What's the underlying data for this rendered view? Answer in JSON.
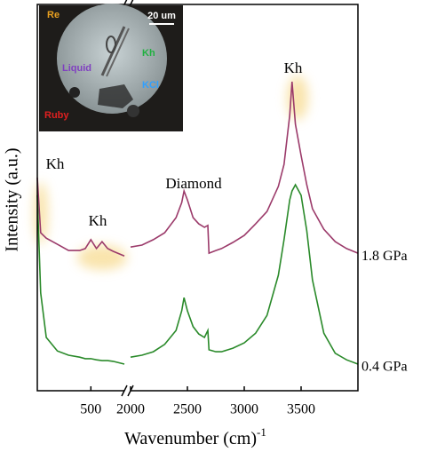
{
  "chart_data": {
    "type": "line",
    "x_label": "Wavenumber (cm)",
    "x_label_sup": "-1",
    "y_label": "Intensity (a.u.)",
    "xlim": [
      [
        20,
        800
      ],
      [
        2000,
        4000
      ]
    ],
    "xticks": [
      [
        500
      ],
      [
        2000,
        2500,
        3000,
        3500
      ]
    ],
    "ylim": [
      0,
      100
    ],
    "x": [
      20,
      50,
      100,
      200,
      300,
      400,
      450,
      500,
      550,
      600,
      650,
      700,
      800,
      2000,
      2100,
      2200,
      2300,
      2400,
      2450,
      2470,
      2500,
      2550,
      2600,
      2650,
      2680,
      2690,
      2750,
      2800,
      2900,
      3000,
      3100,
      3200,
      3300,
      3350,
      3400,
      3420,
      3450,
      3500,
      3550,
      3600,
      3700,
      3800,
      3900,
      4000
    ],
    "series": [
      {
        "name": "1.8 GPa",
        "color": "#9b3a6a",
        "values": [
          55.2,
          40.9,
          39.5,
          37.9,
          36.3,
          36.3,
          36.8,
          39.1,
          36.8,
          38.6,
          36.8,
          36.1,
          34.9,
          37.2,
          37.7,
          39.1,
          40.9,
          44.8,
          48.7,
          51.7,
          49.4,
          44.8,
          43.2,
          42.3,
          42.8,
          35.6,
          36.3,
          36.8,
          38.4,
          40.2,
          43.2,
          46.4,
          52.9,
          58.6,
          71.3,
          80.0,
          69.0,
          60.9,
          53.3,
          47.1,
          41.8,
          38.6,
          36.8,
          35.6
        ]
      },
      {
        "name": "0.4 GPa",
        "color": "#2a8a2a",
        "values": [
          50.6,
          25.3,
          13.8,
          10.3,
          9.2,
          8.7,
          8.3,
          8.3,
          8.0,
          7.8,
          7.8,
          7.6,
          6.9,
          8.7,
          9.2,
          10.1,
          12.0,
          15.6,
          20.7,
          24.1,
          20.7,
          16.6,
          14.7,
          13.8,
          15.6,
          10.6,
          10.1,
          10.1,
          11.0,
          12.4,
          14.9,
          19.5,
          29.9,
          39.1,
          49.4,
          51.7,
          53.3,
          50.6,
          41.4,
          28.7,
          14.9,
          9.7,
          8.0,
          6.9
        ]
      }
    ],
    "annotations": [
      "Kh",
      "Kh",
      "Diamond",
      "Kh"
    ],
    "inset_labels": [
      {
        "text": "Re",
        "color": "#e8a020"
      },
      {
        "text": "20 um",
        "color": "#ffffff"
      },
      {
        "text": "Kh",
        "color": "#20b040"
      },
      {
        "text": "Liquid",
        "color": "#8040c0"
      },
      {
        "text": "KCl",
        "color": "#30a0ff"
      },
      {
        "text": "Ruby",
        "color": "#e02020"
      }
    ]
  }
}
